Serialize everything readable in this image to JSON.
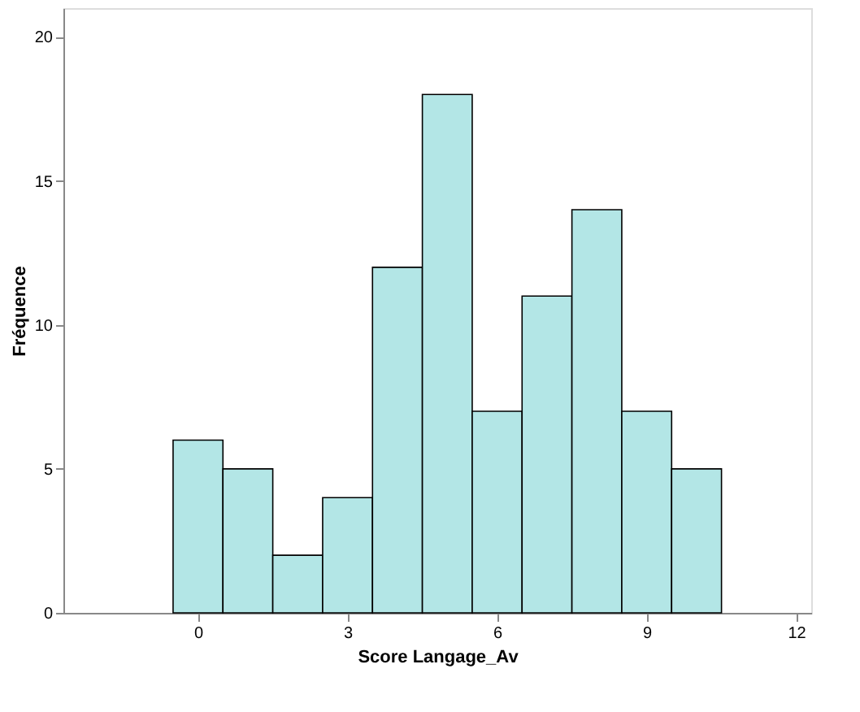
{
  "chart_data": {
    "type": "histogram",
    "xlabel": "Score Langage_Av",
    "ylabel": "Fréquence",
    "bins": [
      -0.5,
      0.5,
      1.5,
      2.5,
      3.5,
      4.5,
      5.5,
      6.5,
      7.5,
      8.5,
      9.5,
      10.5
    ],
    "values": [
      6,
      5,
      2,
      4,
      12,
      18,
      7,
      11,
      14,
      7,
      5
    ],
    "color": "#b3e6e6",
    "xlim": [
      -2.7,
      12.3
    ],
    "xticks": [
      0,
      3,
      6,
      9,
      12
    ],
    "ylim": [
      0,
      21
    ],
    "yticks": [
      0,
      5,
      10,
      15,
      20
    ],
    "grid": false
  }
}
